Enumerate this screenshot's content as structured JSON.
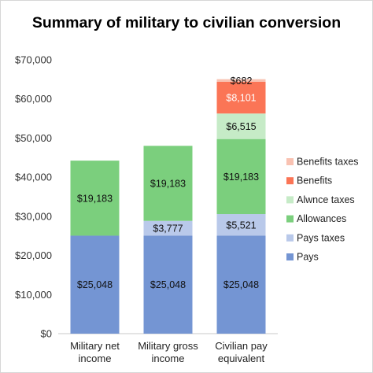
{
  "chart_data": {
    "type": "bar",
    "stacked": true,
    "title": "Summary of military to civilian conversion",
    "xlabel": "",
    "ylabel": "",
    "ylim": [
      0,
      70000
    ],
    "y_ticks": [
      0,
      10000,
      20000,
      30000,
      40000,
      50000,
      60000,
      70000
    ],
    "y_tick_labels": [
      "$0",
      "$10,000",
      "$20,000",
      "$30,000",
      "$40,000",
      "$50,000",
      "$60,000",
      "$70,000"
    ],
    "grid": false,
    "legend_position": "right",
    "categories": [
      [
        "Military net",
        "income"
      ],
      [
        "Military gross",
        "income"
      ],
      [
        "Civilian pay",
        "equivalent"
      ]
    ],
    "series": [
      {
        "name": "Pays",
        "color": "#7495d3",
        "values": [
          25048,
          25048,
          25048
        ],
        "labels": [
          "$25,048",
          "$25,048",
          "$25,048"
        ]
      },
      {
        "name": "Pays taxes",
        "color": "#b9c9ea",
        "values": [
          0,
          3777,
          5521
        ],
        "labels": [
          "",
          "$3,777",
          "$5,521"
        ]
      },
      {
        "name": "Allowances",
        "color": "#7bcf7d",
        "values": [
          19183,
          19183,
          19183
        ],
        "labels": [
          "$19,183",
          "$19,183",
          "$19,183"
        ]
      },
      {
        "name": "Alwnce taxes",
        "color": "#c6ebc7",
        "values": [
          0,
          0,
          6515
        ],
        "labels": [
          "",
          "",
          "$6,515"
        ]
      },
      {
        "name": "Benefits",
        "color": "#fb7556",
        "values": [
          0,
          0,
          8101
        ],
        "labels": [
          "",
          "",
          "$8,101"
        ]
      },
      {
        "name": "Benefits taxes",
        "color": "#f9c2b2",
        "values": [
          0,
          0,
          682
        ],
        "labels": [
          "",
          "",
          "$682"
        ]
      }
    ]
  }
}
